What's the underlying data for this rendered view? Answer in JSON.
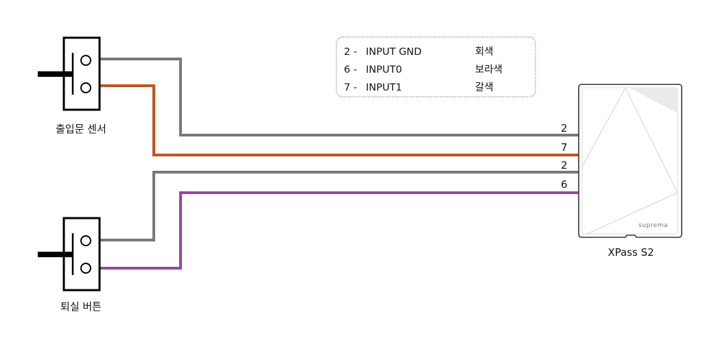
{
  "colors": {
    "gray_wire": "#787878",
    "orange_wire": "#c0531e",
    "purple_wire": "#8e4b9b"
  },
  "legend": {
    "rows": [
      {
        "pin": "2 -",
        "signal": "INPUT GND",
        "color_name": "회색"
      },
      {
        "pin": "6 -",
        "signal": "INPUT0",
        "color_name": "보라색"
      },
      {
        "pin": "7 -",
        "signal": "INPUT1",
        "color_name": "갈색"
      }
    ]
  },
  "door_sensor": {
    "label": "출입문 센서"
  },
  "exit_button": {
    "label": "퇴실 버튼"
  },
  "device": {
    "label": "XPass S2",
    "brand": "suprema"
  },
  "pins": [
    "2",
    "7",
    "2",
    "6"
  ]
}
